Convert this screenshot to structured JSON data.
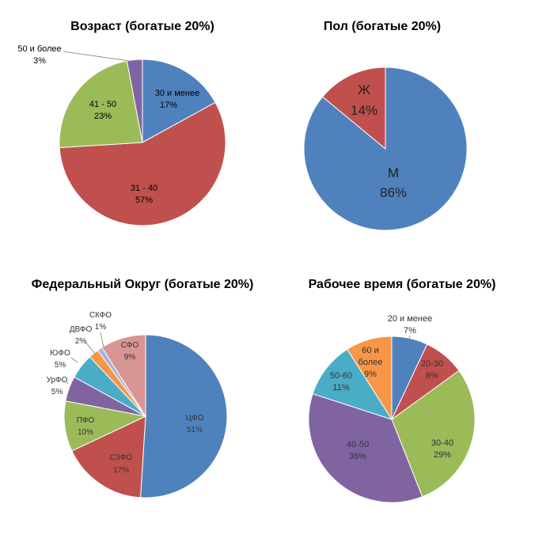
{
  "chart_data": [
    {
      "type": "pie",
      "title": "Возраст (богатые 20%)",
      "categories": [
        "30 и менее",
        "31 - 40",
        "41 - 50",
        "50 и более"
      ],
      "values": [
        17,
        57,
        23,
        3
      ],
      "labels": [
        "17%",
        "57%",
        "23%",
        "3%"
      ],
      "colors": [
        "#4F81BD",
        "#C0504D",
        "#9BBB59",
        "#8064A2"
      ]
    },
    {
      "type": "pie",
      "title": "Пол (богатые 20%)",
      "categories": [
        "М",
        "Ж"
      ],
      "values": [
        86,
        14
      ],
      "labels": [
        "86%",
        "14%"
      ],
      "colors": [
        "#4F81BD",
        "#C0504D"
      ]
    },
    {
      "type": "pie",
      "title": "Федеральный Округ (богатые 20%)",
      "categories": [
        "ЦФО",
        "СЗФО",
        "ПФО",
        "УрФО",
        "ЮФО",
        "ДВФО",
        "СКФО",
        "СФО"
      ],
      "values": [
        51,
        17,
        10,
        5,
        5,
        2,
        1,
        9
      ],
      "labels": [
        "51%",
        "17%",
        "10%",
        "5%",
        "5%",
        "2%",
        "1%",
        "9%"
      ],
      "colors": [
        "#4F81BD",
        "#C0504D",
        "#9BBB59",
        "#8064A2",
        "#4BACC6",
        "#F79646",
        "#A5B5DA",
        "#D99594"
      ]
    },
    {
      "type": "pie",
      "title": "Рабочее время (богатые 20%)",
      "categories": [
        "20 и менее",
        "20-30",
        "30-40",
        "40-50",
        "50-60",
        "60 и более"
      ],
      "values": [
        7,
        8,
        29,
        36,
        11,
        9
      ],
      "labels": [
        "7%",
        "8%",
        "29%",
        "36%",
        "11%",
        "9%"
      ],
      "colors": [
        "#4F81BD",
        "#C0504D",
        "#9BBB59",
        "#8064A2",
        "#4BACC6",
        "#F79646"
      ]
    }
  ]
}
